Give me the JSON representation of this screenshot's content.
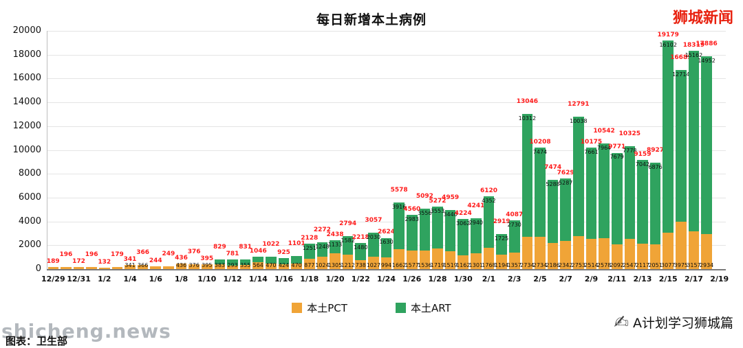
{
  "overlays": {
    "site_brand": "狮城新闻",
    "watermark": "shicheng.news",
    "source_caption": "图表：卫生部",
    "channel_brand": "A计划学习狮城篇"
  },
  "colors": {
    "pct": "#F0A437",
    "art": "#2FA35F",
    "total_label": "#FF1A1A",
    "brand_red": "#E8210F"
  },
  "chart_data": {
    "type": "bar",
    "stacked": true,
    "title": "每日新增本土病例",
    "xlabel": "",
    "ylabel": "",
    "ylim": [
      0,
      20000
    ],
    "grid": true,
    "legend_position": "bottom",
    "y_ticks": [
      0,
      2000,
      4000,
      6000,
      8000,
      10000,
      12000,
      14000,
      16000,
      18000,
      20000
    ],
    "x_ticks": [
      "12/29",
      "12/31",
      "1/2",
      "1/4",
      "1/6",
      "1/8",
      "1/10",
      "1/12",
      "1/14",
      "1/16",
      "1/18",
      "1/20",
      "1/22",
      "1/24",
      "1/26",
      "1/28",
      "1/30",
      "2/1",
      "2/3",
      "2/5",
      "2/7",
      "2/9",
      "2/11",
      "2/13",
      "2/15",
      "2/17",
      "2/19"
    ],
    "legend": [
      {
        "name": "本土PCT",
        "color": "#F0A437"
      },
      {
        "name": "本土ART",
        "color": "#2FA35F"
      }
    ],
    "series_note": "days: stacked daily local cases, pct = 本土PCT (orange bottom), art = 本土ART (green top), total shown in red above bar",
    "days": [
      {
        "date": "12/29",
        "total": 189,
        "pct": 189,
        "art": 0
      },
      {
        "date": "12/30",
        "total": 196,
        "pct": 196,
        "art": 0
      },
      {
        "date": "12/31",
        "total": 172,
        "pct": 172,
        "art": 0
      },
      {
        "date": "1/1",
        "total": 196,
        "pct": 196,
        "art": 0
      },
      {
        "date": "1/2",
        "total": 132,
        "pct": 132,
        "art": 0
      },
      {
        "date": "1/3",
        "total": 179,
        "pct": 179,
        "art": 0
      },
      {
        "date": "1/4",
        "total": 341,
        "pct": 341,
        "art": 0
      },
      {
        "date": "1/5",
        "total": 366,
        "pct": 366,
        "art": 0
      },
      {
        "date": "1/6",
        "total": 244,
        "pct": 244,
        "art": 0
      },
      {
        "date": "1/7",
        "total": 249,
        "pct": 249,
        "art": 0
      },
      {
        "date": "1/8",
        "total": 436,
        "pct": 436,
        "art": 0
      },
      {
        "date": "1/9",
        "total": 376,
        "pct": 376,
        "art": 0
      },
      {
        "date": "1/10",
        "total": 395,
        "pct": 395,
        "art": 0
      },
      {
        "date": "1/11",
        "total": 829,
        "pct": 383,
        "art": 446
      },
      {
        "date": "1/12",
        "total": 781,
        "pct": 293,
        "art": 488
      },
      {
        "date": "1/13",
        "total": 831,
        "pct": 355,
        "art": 476
      },
      {
        "date": "1/14",
        "total": 1046,
        "pct": 564,
        "art": 482
      },
      {
        "date": "1/15",
        "total": 1022,
        "pct": 470,
        "art": 552
      },
      {
        "date": "1/16",
        "total": 925,
        "pct": 424,
        "art": 501
      },
      {
        "date": "1/17",
        "total": 1101,
        "pct": 470,
        "art": 631
      },
      {
        "date": "1/18",
        "total": 2128,
        "pct": 877,
        "art": 1251
      },
      {
        "date": "1/19",
        "total": 2272,
        "pct": 1024,
        "art": 1248
      },
      {
        "date": "1/20",
        "total": 2438,
        "pct": 1305,
        "art": 1133
      },
      {
        "date": "1/21",
        "total": 2794,
        "pct": 1212,
        "art": 1582
      },
      {
        "date": "1/22",
        "total": 2218,
        "pct": 738,
        "art": 1480
      },
      {
        "date": "1/23",
        "total": 3057,
        "pct": 1027,
        "art": 2030
      },
      {
        "date": "1/24",
        "total": 2624,
        "pct": 994,
        "art": 1630
      },
      {
        "date": "1/25",
        "total": 5578,
        "pct": 1662,
        "art": 3916
      },
      {
        "date": "1/26",
        "total": 4560,
        "pct": 1577,
        "art": 2983
      },
      {
        "date": "1/27",
        "total": 5092,
        "pct": 1536,
        "art": 3556
      },
      {
        "date": "1/28",
        "total": 5272,
        "pct": 1719,
        "art": 3553
      },
      {
        "date": "1/29",
        "total": 4959,
        "pct": 1519,
        "art": 3440
      },
      {
        "date": "1/30",
        "total": 4224,
        "pct": 1162,
        "art": 3062
      },
      {
        "date": "1/31",
        "total": 4241,
        "pct": 1301,
        "art": 2940
      },
      {
        "date": "2/1",
        "total": 6120,
        "pct": 1768,
        "art": 4352
      },
      {
        "date": "2/2",
        "total": 2919,
        "pct": 1194,
        "art": 1725
      },
      {
        "date": "2/3",
        "total": 4087,
        "pct": 1357,
        "art": 2730
      },
      {
        "date": "2/4",
        "total": 13046,
        "pct": 2734,
        "art": 10312
      },
      {
        "date": "2/5",
        "total": 10208,
        "pct": 2734,
        "art": 7474
      },
      {
        "date": "2/6",
        "total": 7474,
        "pct": 2186,
        "art": 5288
      },
      {
        "date": "2/7",
        "total": 7629,
        "pct": 2342,
        "art": 5287
      },
      {
        "date": "2/8",
        "total": 12791,
        "pct": 2753,
        "art": 10038
      },
      {
        "date": "2/9",
        "total": 10175,
        "pct": 2514,
        "art": 7661
      },
      {
        "date": "2/10",
        "total": 10542,
        "pct": 2578,
        "art": 7964
      },
      {
        "date": "2/11",
        "total": 9771,
        "pct": 2092,
        "art": 7679
      },
      {
        "date": "2/12",
        "total": 10325,
        "pct": 2547,
        "art": 7778
      },
      {
        "date": "2/13",
        "total": 9159,
        "pct": 2117,
        "art": 7042
      },
      {
        "date": "2/14",
        "total": 8927,
        "pct": 2051,
        "art": 6876
      },
      {
        "date": "2/15",
        "total": 19179,
        "pct": 3077,
        "art": 16102
      },
      {
        "date": "2/16",
        "total": 16689,
        "pct": 3975,
        "art": 12714
      },
      {
        "date": "2/17",
        "total": 18319,
        "pct": 3157,
        "art": 15162
      },
      {
        "date": "2/18",
        "total": 17886,
        "pct": 2934,
        "art": 14952
      }
    ]
  }
}
